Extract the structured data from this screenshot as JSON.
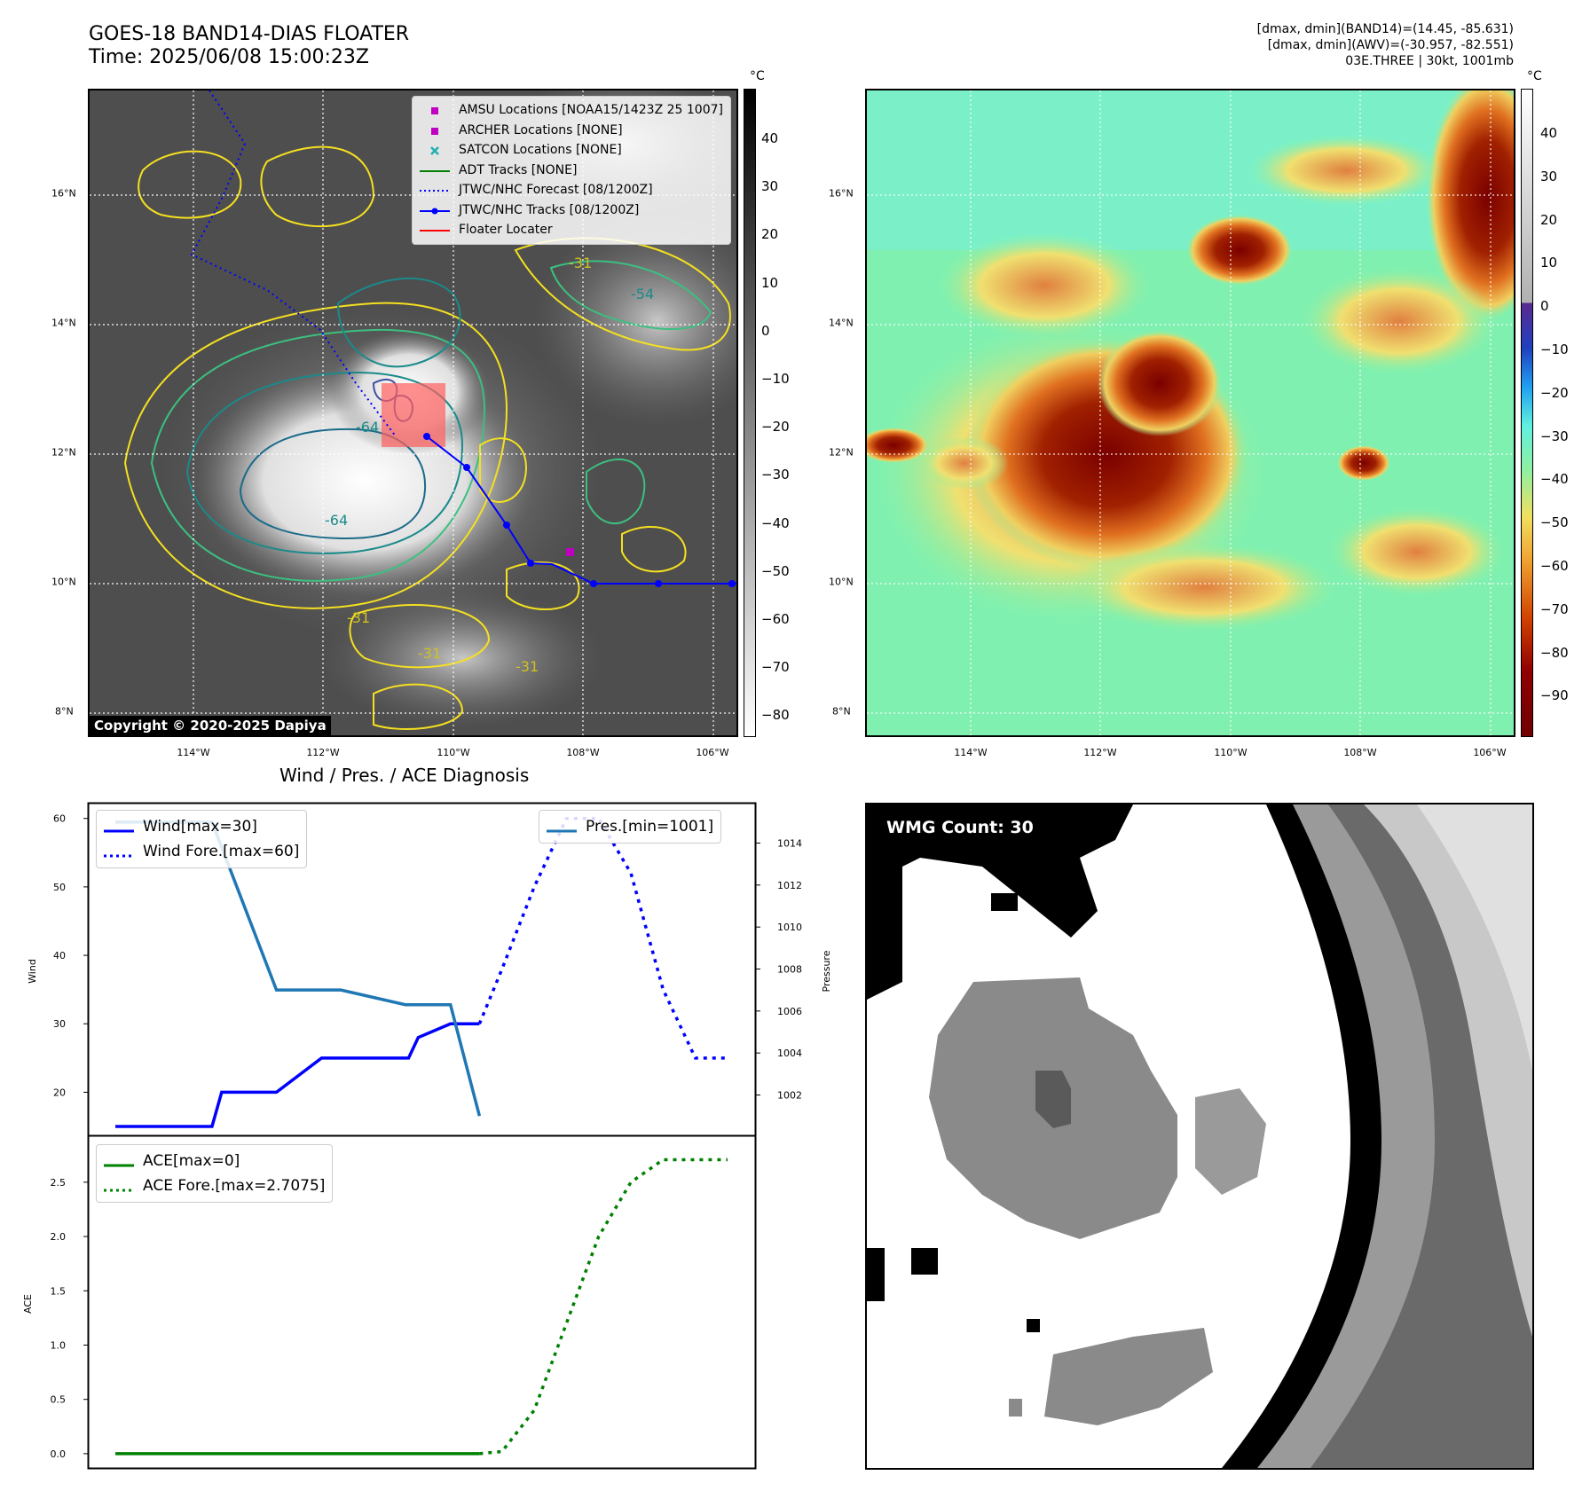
{
  "header": {
    "title_line1": "GOES-18 BAND14-DIAS FLOATER",
    "title_line2": "Time: 2025/06/08 15:00:23Z",
    "info_line1": "[dmax, dmin](BAND14)=(14.45, -85.631)",
    "info_line2": "[dmax, dmin](AWV)=(-30.957, -82.551)",
    "info_line3": "03E.THREE | 30kt, 1001mb"
  },
  "map_panels": {
    "unit_label": "°C",
    "lat_ticks": [
      "16°N",
      "14°N",
      "12°N",
      "10°N",
      "8°N"
    ],
    "lon_ticks": [
      "114°W",
      "112°W",
      "110°W",
      "108°W",
      "106°W"
    ],
    "left_colorbar_ticks": [
      "40",
      "30",
      "20",
      "10",
      "0",
      "−10",
      "−20",
      "−30",
      "−40",
      "−50",
      "−60",
      "−70",
      "−80"
    ],
    "right_colorbar_ticks": [
      "40",
      "30",
      "20",
      "10",
      "0",
      "−10",
      "−20",
      "−30",
      "−40",
      "−50",
      "−60",
      "−70",
      "−80",
      "−90"
    ],
    "copyright": "Copyright © 2020-2025 Dapiya",
    "contour_labels": [
      "-64",
      "-64",
      "-31",
      "-31",
      "-54",
      "-31",
      "-31"
    ],
    "legend": [
      {
        "label": "AMSU Locations [NOAA15/1423Z 25 1007]",
        "marker": "square",
        "color": "#c000c0"
      },
      {
        "label": "ARCHER Locations [NONE]",
        "marker": "square",
        "color": "#c000c0"
      },
      {
        "label": "SATCON Locations [NONE]",
        "marker": "x",
        "color": "#20b0b0"
      },
      {
        "label": "ADT Tracks [NONE]",
        "marker": "line",
        "color": "#008000"
      },
      {
        "label": "JTWC/NHC Forecast [08/1200Z]",
        "marker": "dotted",
        "color": "#0000ff"
      },
      {
        "label": "JTWC/NHC Tracks [08/1200Z]",
        "marker": "line-dot",
        "color": "#0000ff"
      },
      {
        "label": "Floater Locater",
        "marker": "line",
        "color": "#ff0000"
      }
    ],
    "colors": {
      "track": "#0000ff",
      "floater": "#ff0000",
      "amsu": "#c000c0"
    }
  },
  "diagnosis": {
    "title": "Wind / Pres. / ACE Diagnosis",
    "wind_ylabel": "Wind",
    "pressure_ylabel": "Pressure",
    "ace_ylabel": "ACE",
    "wind_ticks": [
      "60",
      "50",
      "40",
      "30",
      "20"
    ],
    "pressure_ticks": [
      "1014",
      "1012",
      "1010",
      "1008",
      "1006",
      "1004",
      "1002"
    ],
    "ace_ticks": [
      "2.5",
      "2.0",
      "1.5",
      "1.0",
      "0.5",
      "0.0"
    ],
    "legend_wind": [
      "Wind[max=30]",
      "Wind Fore.[max=60]"
    ],
    "legend_pres": [
      "Pres.[min=1001]"
    ],
    "legend_ace": [
      "ACE[max=0]",
      "ACE Fore.[max=2.7075]"
    ]
  },
  "wmg": {
    "label": "WMG Count: 30"
  },
  "chart_data": [
    {
      "type": "line",
      "title": "Wind / Pres. / ACE Diagnosis",
      "ylabel": "Wind",
      "ylim": [
        15,
        61
      ],
      "xlim": [
        0,
        19
      ],
      "series": [
        {
          "name": "Wind[max=30]",
          "style": "solid",
          "color": "#0000ff",
          "x": [
            0,
            3,
            3.3,
            5,
            6.4,
            6.7,
            9.1,
            9.4,
            10.4,
            10.7,
            11.3
          ],
          "y": [
            15,
            15,
            20,
            20,
            25,
            25,
            25,
            28,
            30,
            30,
            30
          ]
        },
        {
          "name": "Wind Fore.[max=60]",
          "style": "dotted",
          "color": "#0000ff",
          "x": [
            11.3,
            12,
            13,
            14,
            15,
            16,
            17,
            18,
            19
          ],
          "y": [
            30,
            38,
            50,
            60,
            60,
            52,
            35,
            25,
            25
          ]
        },
        {
          "name": "Pres.[min=1001]",
          "style": "solid",
          "color": "#1f77b4",
          "axis": "pressure",
          "x": [
            0,
            3,
            5,
            7,
            9,
            10.4,
            11.3
          ],
          "y": [
            1015,
            1015,
            1007,
            1007,
            1006.3,
            1006.3,
            1001
          ]
        }
      ],
      "pressure_ylim": [
        1000.5,
        1015.5
      ]
    },
    {
      "type": "line",
      "ylabel": "ACE",
      "ylim": [
        -0.05,
        2.85
      ],
      "xlim": [
        0,
        19
      ],
      "series": [
        {
          "name": "ACE[max=0]",
          "style": "solid",
          "color": "#008000",
          "x": [
            0,
            11.3
          ],
          "y": [
            0,
            0
          ]
        },
        {
          "name": "ACE Fore.[max=2.7075]",
          "style": "dotted",
          "color": "#008000",
          "x": [
            11.3,
            12,
            13,
            14,
            15,
            16,
            17,
            18,
            19
          ],
          "y": [
            0,
            0.02,
            0.4,
            1.2,
            2.0,
            2.5,
            2.7075,
            2.7075,
            2.7075
          ]
        }
      ]
    }
  ]
}
